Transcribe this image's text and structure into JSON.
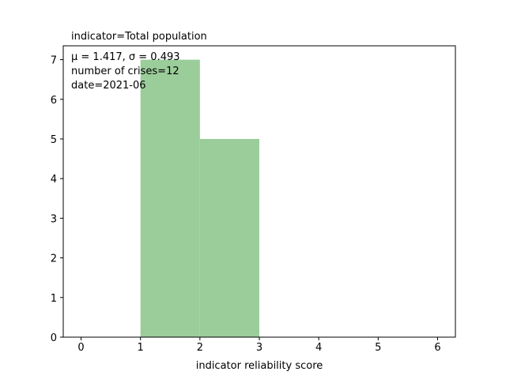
{
  "chart_data": {
    "type": "bar",
    "title": "indicator=Total population",
    "xlabel": "indicator reliability score",
    "ylabel": "",
    "xlim": [
      -0.3,
      6.3
    ],
    "ylim": [
      0,
      7.35
    ],
    "xticks": [
      0,
      1,
      2,
      3,
      4,
      5,
      6
    ],
    "yticks": [
      0,
      1,
      2,
      3,
      4,
      5,
      6,
      7
    ],
    "bins": [
      {
        "x0": 1,
        "x1": 2,
        "count": 7
      },
      {
        "x0": 2,
        "x1": 3,
        "count": 5
      }
    ],
    "bar_color": "#9bcd9b",
    "annotations": {
      "stats": "μ = 1.417,  σ = 0.493",
      "crises": "number of crises=12",
      "date": "date=2021-06"
    }
  }
}
